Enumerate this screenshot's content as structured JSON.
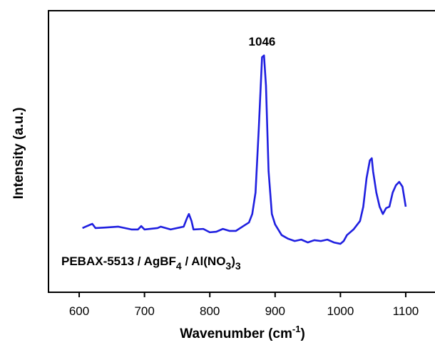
{
  "chart_data": {
    "type": "line",
    "xlabel_parts": [
      "Wavenumber (cm",
      "-1",
      ")"
    ],
    "ylabel": "Intensity (a.u.)",
    "annotation_parts": [
      "PEBAX-5513 / AgBF",
      "4",
      " / Al(NO",
      "3",
      ")",
      "3"
    ],
    "peak_label": {
      "text": "1046",
      "x": 880,
      "y": 84.1
    },
    "xlim": [
      553,
      1147
    ],
    "ylim": [
      0,
      100
    ],
    "xticks": [
      600,
      700,
      800,
      900,
      1000,
      1100
    ],
    "series": [
      {
        "name": "PEBAX-5513 / AgBF4 / Al(NO3)3",
        "color": "#1f1fe0",
        "x": [
          605,
          610,
          620,
          625,
          640,
          660,
          680,
          690,
          695,
          700,
          720,
          725,
          740,
          760,
          765,
          768,
          772,
          775,
          790,
          800,
          810,
          820,
          830,
          840,
          850,
          860,
          865,
          870,
          875,
          880,
          883,
          886,
          890,
          895,
          900,
          910,
          920,
          930,
          940,
          950,
          960,
          970,
          980,
          990,
          1000,
          1005,
          1010,
          1020,
          1030,
          1035,
          1040,
          1045,
          1048,
          1050,
          1055,
          1060,
          1065,
          1070,
          1075,
          1080,
          1085,
          1090,
          1095,
          1100
        ],
        "values": [
          22.8,
          23.3,
          24.3,
          22.8,
          23.0,
          23.3,
          22.3,
          22.3,
          23.5,
          22.3,
          22.8,
          23.3,
          22.3,
          23.3,
          26.3,
          27.8,
          25.3,
          22.3,
          22.5,
          21.3,
          21.5,
          22.5,
          21.8,
          21.8,
          23.3,
          24.8,
          27.8,
          35.4,
          58.2,
          83.5,
          84.1,
          73.4,
          43.0,
          27.8,
          24.1,
          20.3,
          19.0,
          18.2,
          18.7,
          17.7,
          18.5,
          18.2,
          18.7,
          17.7,
          17.2,
          18.2,
          20.3,
          22.3,
          25.3,
          30.4,
          40.5,
          46.8,
          47.6,
          43.0,
          35.4,
          30.4,
          27.8,
          29.9,
          30.4,
          35.4,
          38.0,
          39.2,
          37.5,
          30.4
        ]
      }
    ]
  }
}
